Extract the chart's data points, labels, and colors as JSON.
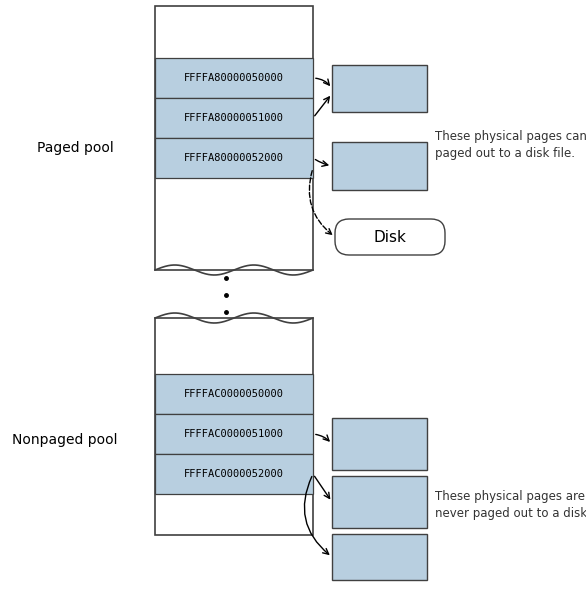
{
  "bg_color": "#ffffff",
  "box_fill": "#b8cfe0",
  "box_edge": "#404040",
  "rect_fill": "#b8cfe0",
  "rect_edge": "#404040",
  "paged_label": "Paged pool",
  "nonpaged_label": "Nonpaged pool",
  "paged_addresses": [
    "FFFFA80000050000",
    "FFFFA80000051000",
    "FFFFA80000052000"
  ],
  "nonpaged_addresses": [
    "FFFFAC0000050000",
    "FFFFAC0000051000",
    "FFFFAC0000052000"
  ],
  "paged_note": "These physical pages can be\npaged out to a disk file.",
  "nonpaged_note": "These physical pages are\nnever paged out to a disk file.",
  "disk_label": "Disk",
  "font_size_addr": 7.5,
  "font_size_label": 10,
  "font_size_note": 8.5,
  "font_size_disk": 11
}
